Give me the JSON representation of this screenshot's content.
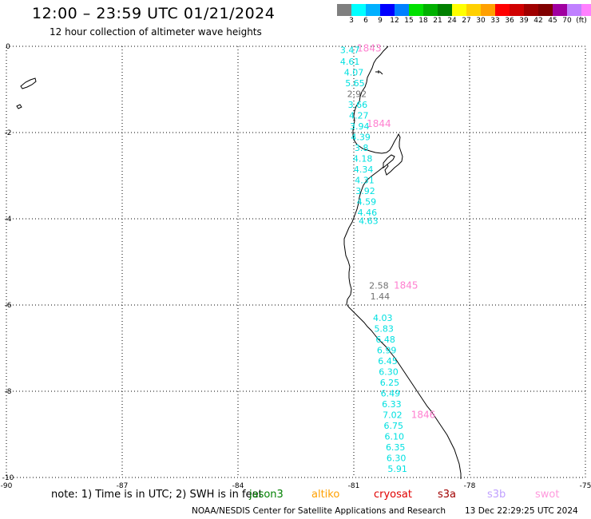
{
  "header": {
    "title": "12:00 – 23:59 UTC 01/21/2024",
    "subtitle": "12 hour collection of altimeter wave heights"
  },
  "legend": {
    "colors": [
      "#7f7f7f",
      "#00ffff",
      "#00b0ff",
      "#0000ff",
      "#0080ff",
      "#00e000",
      "#00b000",
      "#008000",
      "#ffff00",
      "#ffd000",
      "#ffa000",
      "#ff0000",
      "#d00000",
      "#a00000",
      "#800000",
      "#a000a0",
      "#c080ff",
      "#ff80ff",
      "#000000"
    ],
    "labels": [
      "3",
      "6",
      "9",
      "12",
      "15",
      "18",
      "21",
      "24",
      "27",
      "30",
      "33",
      "36",
      "39",
      "42",
      "45",
      "70",
      "(ft)"
    ]
  },
  "axes": {
    "x_ticks": [
      "-90",
      "-87",
      "-84",
      "-81",
      "-78",
      "-75"
    ],
    "y_ticks": [
      "0",
      "-2",
      "-4",
      "-6",
      "-8",
      "-10"
    ]
  },
  "chart_data": {
    "type": "scatter",
    "title": "12:00 – 23:59 UTC 01/21/2024",
    "subtitle": "12 hour collection of altimeter wave heights",
    "xlim": [
      -90,
      -75
    ],
    "ylim": [
      -10,
      0
    ],
    "units": "ft",
    "wave_heights": [
      {
        "value": "3.47",
        "lon": -81.1,
        "lat": -0.08,
        "color": "#00e0e0"
      },
      {
        "value": "4.61",
        "lon": -81.1,
        "lat": -0.35,
        "color": "#00e0e0"
      },
      {
        "value": "4.07",
        "lon": -81.0,
        "lat": -0.6,
        "color": "#00e0e0"
      },
      {
        "value": "5.65",
        "lon": -80.97,
        "lat": -0.85,
        "color": "#00e0e0"
      },
      {
        "value": "2.92",
        "lon": -80.92,
        "lat": -1.1,
        "color": "#707070"
      },
      {
        "value": "3.66",
        "lon": -80.9,
        "lat": -1.35,
        "color": "#00e0e0"
      },
      {
        "value": "4.27",
        "lon": -80.87,
        "lat": -1.6,
        "color": "#00e0e0"
      },
      {
        "value": "3.94",
        "lon": -80.85,
        "lat": -1.85,
        "color": "#00e0e0"
      },
      {
        "value": "4.39",
        "lon": -80.82,
        "lat": -2.1,
        "color": "#00e0e0"
      },
      {
        "value": "3.8",
        "lon": -80.8,
        "lat": -2.35,
        "color": "#00e0e0"
      },
      {
        "value": "4.18",
        "lon": -80.77,
        "lat": -2.6,
        "color": "#00e0e0"
      },
      {
        "value": "4.34",
        "lon": -80.75,
        "lat": -2.85,
        "color": "#00e0e0"
      },
      {
        "value": "4.31",
        "lon": -80.72,
        "lat": -3.1,
        "color": "#00e0e0"
      },
      {
        "value": "3.92",
        "lon": -80.7,
        "lat": -3.35,
        "color": "#00e0e0"
      },
      {
        "value": "4.59",
        "lon": -80.67,
        "lat": -3.6,
        "color": "#00e0e0"
      },
      {
        "value": "4.46",
        "lon": -80.65,
        "lat": -3.85,
        "color": "#00e0e0"
      },
      {
        "value": "4.63",
        "lon": -80.62,
        "lat": -4.05,
        "color": "#00e0e0"
      },
      {
        "value": "2.58",
        "lon": -80.35,
        "lat": -5.55,
        "color": "#707070"
      },
      {
        "value": "1.44",
        "lon": -80.32,
        "lat": -5.8,
        "color": "#707070"
      },
      {
        "value": "4.03",
        "lon": -80.25,
        "lat": -6.3,
        "color": "#00e0e0"
      },
      {
        "value": "5.83",
        "lon": -80.22,
        "lat": -6.55,
        "color": "#00e0e0"
      },
      {
        "value": "6.48",
        "lon": -80.18,
        "lat": -6.8,
        "color": "#00e0e0"
      },
      {
        "value": "6.99",
        "lon": -80.15,
        "lat": -7.05,
        "color": "#00e0e0"
      },
      {
        "value": "6.45",
        "lon": -80.12,
        "lat": -7.3,
        "color": "#00e0e0"
      },
      {
        "value": "6.30",
        "lon": -80.1,
        "lat": -7.55,
        "color": "#00e0e0"
      },
      {
        "value": "6.25",
        "lon": -80.07,
        "lat": -7.8,
        "color": "#00e0e0"
      },
      {
        "value": "6.49",
        "lon": -80.05,
        "lat": -8.05,
        "color": "#00e0e0"
      },
      {
        "value": "6.33",
        "lon": -80.02,
        "lat": -8.3,
        "color": "#00e0e0"
      },
      {
        "value": "7.02",
        "lon": -80.0,
        "lat": -8.55,
        "color": "#00e0e0"
      },
      {
        "value": "6.75",
        "lon": -79.97,
        "lat": -8.8,
        "color": "#00e0e0"
      },
      {
        "value": "6.10",
        "lon": -79.95,
        "lat": -9.05,
        "color": "#00e0e0"
      },
      {
        "value": "6.35",
        "lon": -79.92,
        "lat": -9.3,
        "color": "#00e0e0"
      },
      {
        "value": "6.30",
        "lon": -79.9,
        "lat": -9.55,
        "color": "#00e0e0"
      },
      {
        "value": "5.91",
        "lon": -79.87,
        "lat": -9.8,
        "color": "#00e0e0"
      }
    ],
    "time_labels": [
      {
        "value": "1843",
        "lon": -80.6,
        "lat": -0.05,
        "color": "#ff80d0"
      },
      {
        "value": "1844",
        "lon": -80.35,
        "lat": -1.8,
        "color": "#ff80d0"
      },
      {
        "value": "1845",
        "lon": -79.65,
        "lat": -5.55,
        "color": "#ff80d0"
      },
      {
        "value": "1846",
        "lon": -79.2,
        "lat": -8.55,
        "color": "#ff80d0"
      }
    ]
  },
  "footer": {
    "note": "note:  1) Time is in UTC; 2) SWH is in feet",
    "satellites": [
      {
        "name": "jason3",
        "color": "#008000"
      },
      {
        "name": "altiko",
        "color": "#ffa000"
      },
      {
        "name": "cryosat",
        "color": "#e00000"
      },
      {
        "name": "s3a",
        "color": "#a00000"
      },
      {
        "name": "s3b",
        "color": "#c0a0ff"
      },
      {
        "name": "swot",
        "color": "#ff99dd"
      }
    ],
    "credit": "NOAA/NESDIS Center for Satellite Applications and Research",
    "timestamp": "13 Dec 22:29:25 UTC 2024"
  }
}
